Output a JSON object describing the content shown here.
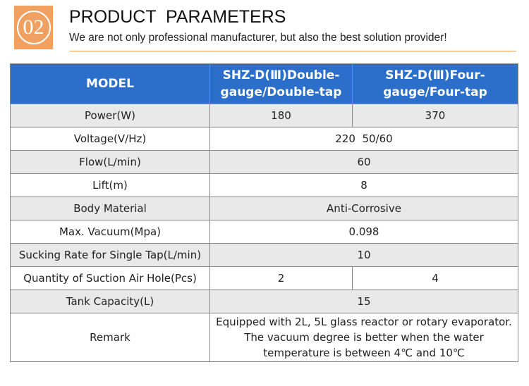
{
  "header": {
    "badge": "02",
    "title": "PRODUCT  PARAMETERS",
    "subtitle": "We are not only professional manufacturer, but also the best solution provider!"
  },
  "table": {
    "columns": [
      "MODEL",
      "SHZ-D(Ⅲ)Double-gauge/Double-tap",
      "SHZ-D(Ⅲ)Four-gauge/Four-tap"
    ],
    "rows": [
      [
        "Power(W)",
        "180",
        "370"
      ],
      [
        "Voltage(V/Hz)",
        "220  50/60"
      ],
      [
        "Flow(L/min)",
        "60"
      ],
      [
        "Lift(m)",
        "8"
      ],
      [
        "Body Material",
        "Anti-Corrosive"
      ],
      [
        "Max. Vacuum(Mpa)",
        "0.098"
      ],
      [
        "Sucking Rate for Single Tap(L/min)",
        "10"
      ],
      [
        "Quantity of Suction Air Hole(Pcs)",
        "2",
        "4"
      ],
      [
        "Tank Capacity(L)",
        "15"
      ],
      [
        "Remark",
        "Equipped with 2L, 5L glass reactor or rotary evaporator. The vacuum degree is better when the water temperature is between 4℃ and 10℃"
      ]
    ]
  }
}
